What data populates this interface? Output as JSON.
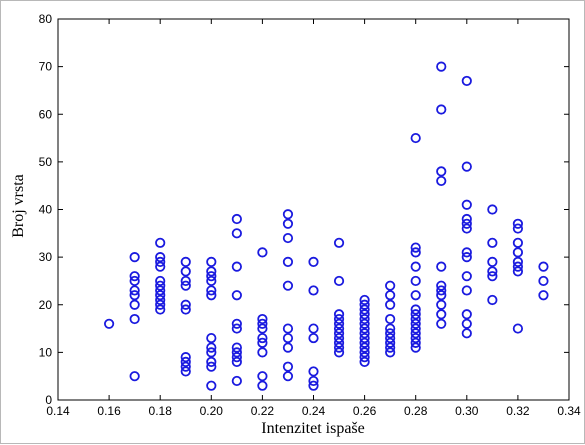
{
  "chart_data": {
    "type": "scatter",
    "title": "",
    "xlabel": "Intenzitet ispaše",
    "ylabel": "Broj vrsta",
    "xlim": [
      0.14,
      0.34
    ],
    "ylim": [
      0,
      80
    ],
    "grid": false,
    "x_ticks": [
      "0.14",
      "0.16",
      "0.18",
      "0.20",
      "0.22",
      "0.24",
      "0.26",
      "0.28",
      "0.30",
      "0.32",
      "0.34"
    ],
    "y_ticks": [
      "0",
      "10",
      "20",
      "30",
      "40",
      "50",
      "60",
      "70",
      "80"
    ],
    "marker": "open-circle",
    "marker_color": "#1a1adf",
    "series": [
      {
        "points": [
          [
            0.16,
            16
          ],
          [
            0.17,
            30
          ],
          [
            0.17,
            26
          ],
          [
            0.17,
            25
          ],
          [
            0.17,
            23
          ],
          [
            0.17,
            22
          ],
          [
            0.17,
            20
          ],
          [
            0.17,
            17
          ],
          [
            0.17,
            5
          ],
          [
            0.18,
            33
          ],
          [
            0.18,
            30
          ],
          [
            0.18,
            29
          ],
          [
            0.18,
            28
          ],
          [
            0.18,
            25
          ],
          [
            0.18,
            24
          ],
          [
            0.18,
            23
          ],
          [
            0.18,
            22
          ],
          [
            0.18,
            21
          ],
          [
            0.18,
            20
          ],
          [
            0.18,
            19
          ],
          [
            0.19,
            29
          ],
          [
            0.19,
            27
          ],
          [
            0.19,
            25
          ],
          [
            0.19,
            24
          ],
          [
            0.19,
            20
          ],
          [
            0.19,
            19
          ],
          [
            0.19,
            9
          ],
          [
            0.19,
            8
          ],
          [
            0.19,
            7
          ],
          [
            0.19,
            6
          ],
          [
            0.2,
            29
          ],
          [
            0.2,
            27
          ],
          [
            0.2,
            26
          ],
          [
            0.2,
            25
          ],
          [
            0.2,
            23
          ],
          [
            0.2,
            22
          ],
          [
            0.2,
            13
          ],
          [
            0.2,
            11
          ],
          [
            0.2,
            10
          ],
          [
            0.2,
            8
          ],
          [
            0.2,
            7
          ],
          [
            0.2,
            3
          ],
          [
            0.21,
            38
          ],
          [
            0.21,
            35
          ],
          [
            0.21,
            28
          ],
          [
            0.21,
            22
          ],
          [
            0.21,
            16
          ],
          [
            0.21,
            15
          ],
          [
            0.21,
            11
          ],
          [
            0.21,
            10
          ],
          [
            0.21,
            9
          ],
          [
            0.21,
            8
          ],
          [
            0.21,
            4
          ],
          [
            0.22,
            31
          ],
          [
            0.22,
            17
          ],
          [
            0.22,
            16
          ],
          [
            0.22,
            15
          ],
          [
            0.22,
            13
          ],
          [
            0.22,
            12
          ],
          [
            0.22,
            10
          ],
          [
            0.22,
            5
          ],
          [
            0.22,
            3
          ],
          [
            0.23,
            39
          ],
          [
            0.23,
            37
          ],
          [
            0.23,
            34
          ],
          [
            0.23,
            29
          ],
          [
            0.23,
            24
          ],
          [
            0.23,
            15
          ],
          [
            0.23,
            13
          ],
          [
            0.23,
            11
          ],
          [
            0.23,
            7
          ],
          [
            0.23,
            5
          ],
          [
            0.24,
            29
          ],
          [
            0.24,
            23
          ],
          [
            0.24,
            15
          ],
          [
            0.24,
            13
          ],
          [
            0.24,
            6
          ],
          [
            0.24,
            4
          ],
          [
            0.24,
            3
          ],
          [
            0.25,
            33
          ],
          [
            0.25,
            25
          ],
          [
            0.25,
            18
          ],
          [
            0.25,
            17
          ],
          [
            0.25,
            16
          ],
          [
            0.25,
            15
          ],
          [
            0.25,
            14
          ],
          [
            0.25,
            13
          ],
          [
            0.25,
            12
          ],
          [
            0.25,
            11
          ],
          [
            0.25,
            10
          ],
          [
            0.26,
            21
          ],
          [
            0.26,
            20
          ],
          [
            0.26,
            19
          ],
          [
            0.26,
            18
          ],
          [
            0.26,
            17
          ],
          [
            0.26,
            16
          ],
          [
            0.26,
            15
          ],
          [
            0.26,
            14
          ],
          [
            0.26,
            13
          ],
          [
            0.26,
            12
          ],
          [
            0.26,
            11
          ],
          [
            0.26,
            10
          ],
          [
            0.26,
            9
          ],
          [
            0.26,
            8
          ],
          [
            0.27,
            24
          ],
          [
            0.27,
            22
          ],
          [
            0.27,
            20
          ],
          [
            0.27,
            17
          ],
          [
            0.27,
            15
          ],
          [
            0.27,
            14
          ],
          [
            0.27,
            13
          ],
          [
            0.27,
            12
          ],
          [
            0.27,
            11
          ],
          [
            0.27,
            10
          ],
          [
            0.28,
            55
          ],
          [
            0.28,
            32
          ],
          [
            0.28,
            31
          ],
          [
            0.28,
            28
          ],
          [
            0.28,
            25
          ],
          [
            0.28,
            22
          ],
          [
            0.28,
            19
          ],
          [
            0.28,
            18
          ],
          [
            0.28,
            17
          ],
          [
            0.28,
            16
          ],
          [
            0.28,
            15
          ],
          [
            0.28,
            14
          ],
          [
            0.28,
            13
          ],
          [
            0.28,
            12
          ],
          [
            0.28,
            11
          ],
          [
            0.29,
            70
          ],
          [
            0.29,
            61
          ],
          [
            0.29,
            48
          ],
          [
            0.29,
            46
          ],
          [
            0.29,
            28
          ],
          [
            0.29,
            24
          ],
          [
            0.29,
            23
          ],
          [
            0.29,
            22
          ],
          [
            0.29,
            20
          ],
          [
            0.29,
            18
          ],
          [
            0.29,
            16
          ],
          [
            0.3,
            67
          ],
          [
            0.3,
            49
          ],
          [
            0.3,
            41
          ],
          [
            0.3,
            38
          ],
          [
            0.3,
            37
          ],
          [
            0.3,
            36
          ],
          [
            0.3,
            31
          ],
          [
            0.3,
            30
          ],
          [
            0.3,
            26
          ],
          [
            0.3,
            23
          ],
          [
            0.3,
            18
          ],
          [
            0.3,
            16
          ],
          [
            0.3,
            14
          ],
          [
            0.31,
            40
          ],
          [
            0.31,
            33
          ],
          [
            0.31,
            29
          ],
          [
            0.31,
            27
          ],
          [
            0.31,
            26
          ],
          [
            0.31,
            21
          ],
          [
            0.32,
            37
          ],
          [
            0.32,
            36
          ],
          [
            0.32,
            33
          ],
          [
            0.32,
            31
          ],
          [
            0.32,
            29
          ],
          [
            0.32,
            28
          ],
          [
            0.32,
            27
          ],
          [
            0.32,
            15
          ],
          [
            0.33,
            28
          ],
          [
            0.33,
            25
          ],
          [
            0.33,
            22
          ]
        ]
      }
    ]
  }
}
